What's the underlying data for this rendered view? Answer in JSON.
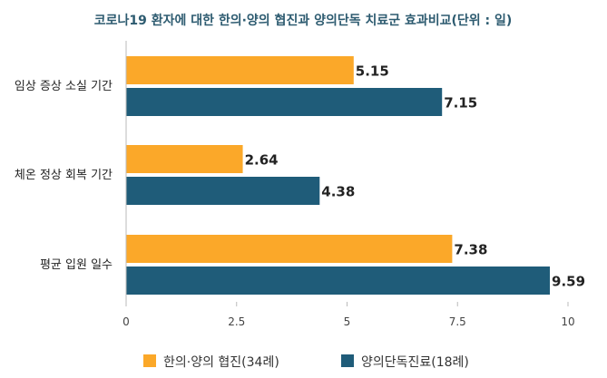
{
  "chart_data": {
    "type": "bar",
    "orientation": "horizontal",
    "title": "코로나19 환자에 대한 한의·양의 협진과 양의단독 치료군 효과비교(단위 : 일)",
    "categories": [
      "임상 증상 소실 기간",
      "체온 정상 회복 기간",
      "평균 입원 일수"
    ],
    "series": [
      {
        "name": "한의·양의 협진(34례)",
        "values": [
          5.15,
          2.64,
          7.38
        ],
        "color": "#FBA829"
      },
      {
        "name": "양의단독진료(18례)",
        "values": [
          7.15,
          4.38,
          9.59
        ],
        "color": "#1F5C79"
      }
    ],
    "data_labels": [
      [
        "5.15",
        "2.64",
        "7.38"
      ],
      [
        "7.15",
        "4.38",
        "9.59"
      ]
    ],
    "xlim": [
      0,
      10
    ],
    "x_ticks": [
      "0",
      "2.5",
      "5",
      "7.5",
      "10"
    ],
    "grid": false,
    "legend_position": "bottom",
    "title_color": "#2d5b70"
  }
}
